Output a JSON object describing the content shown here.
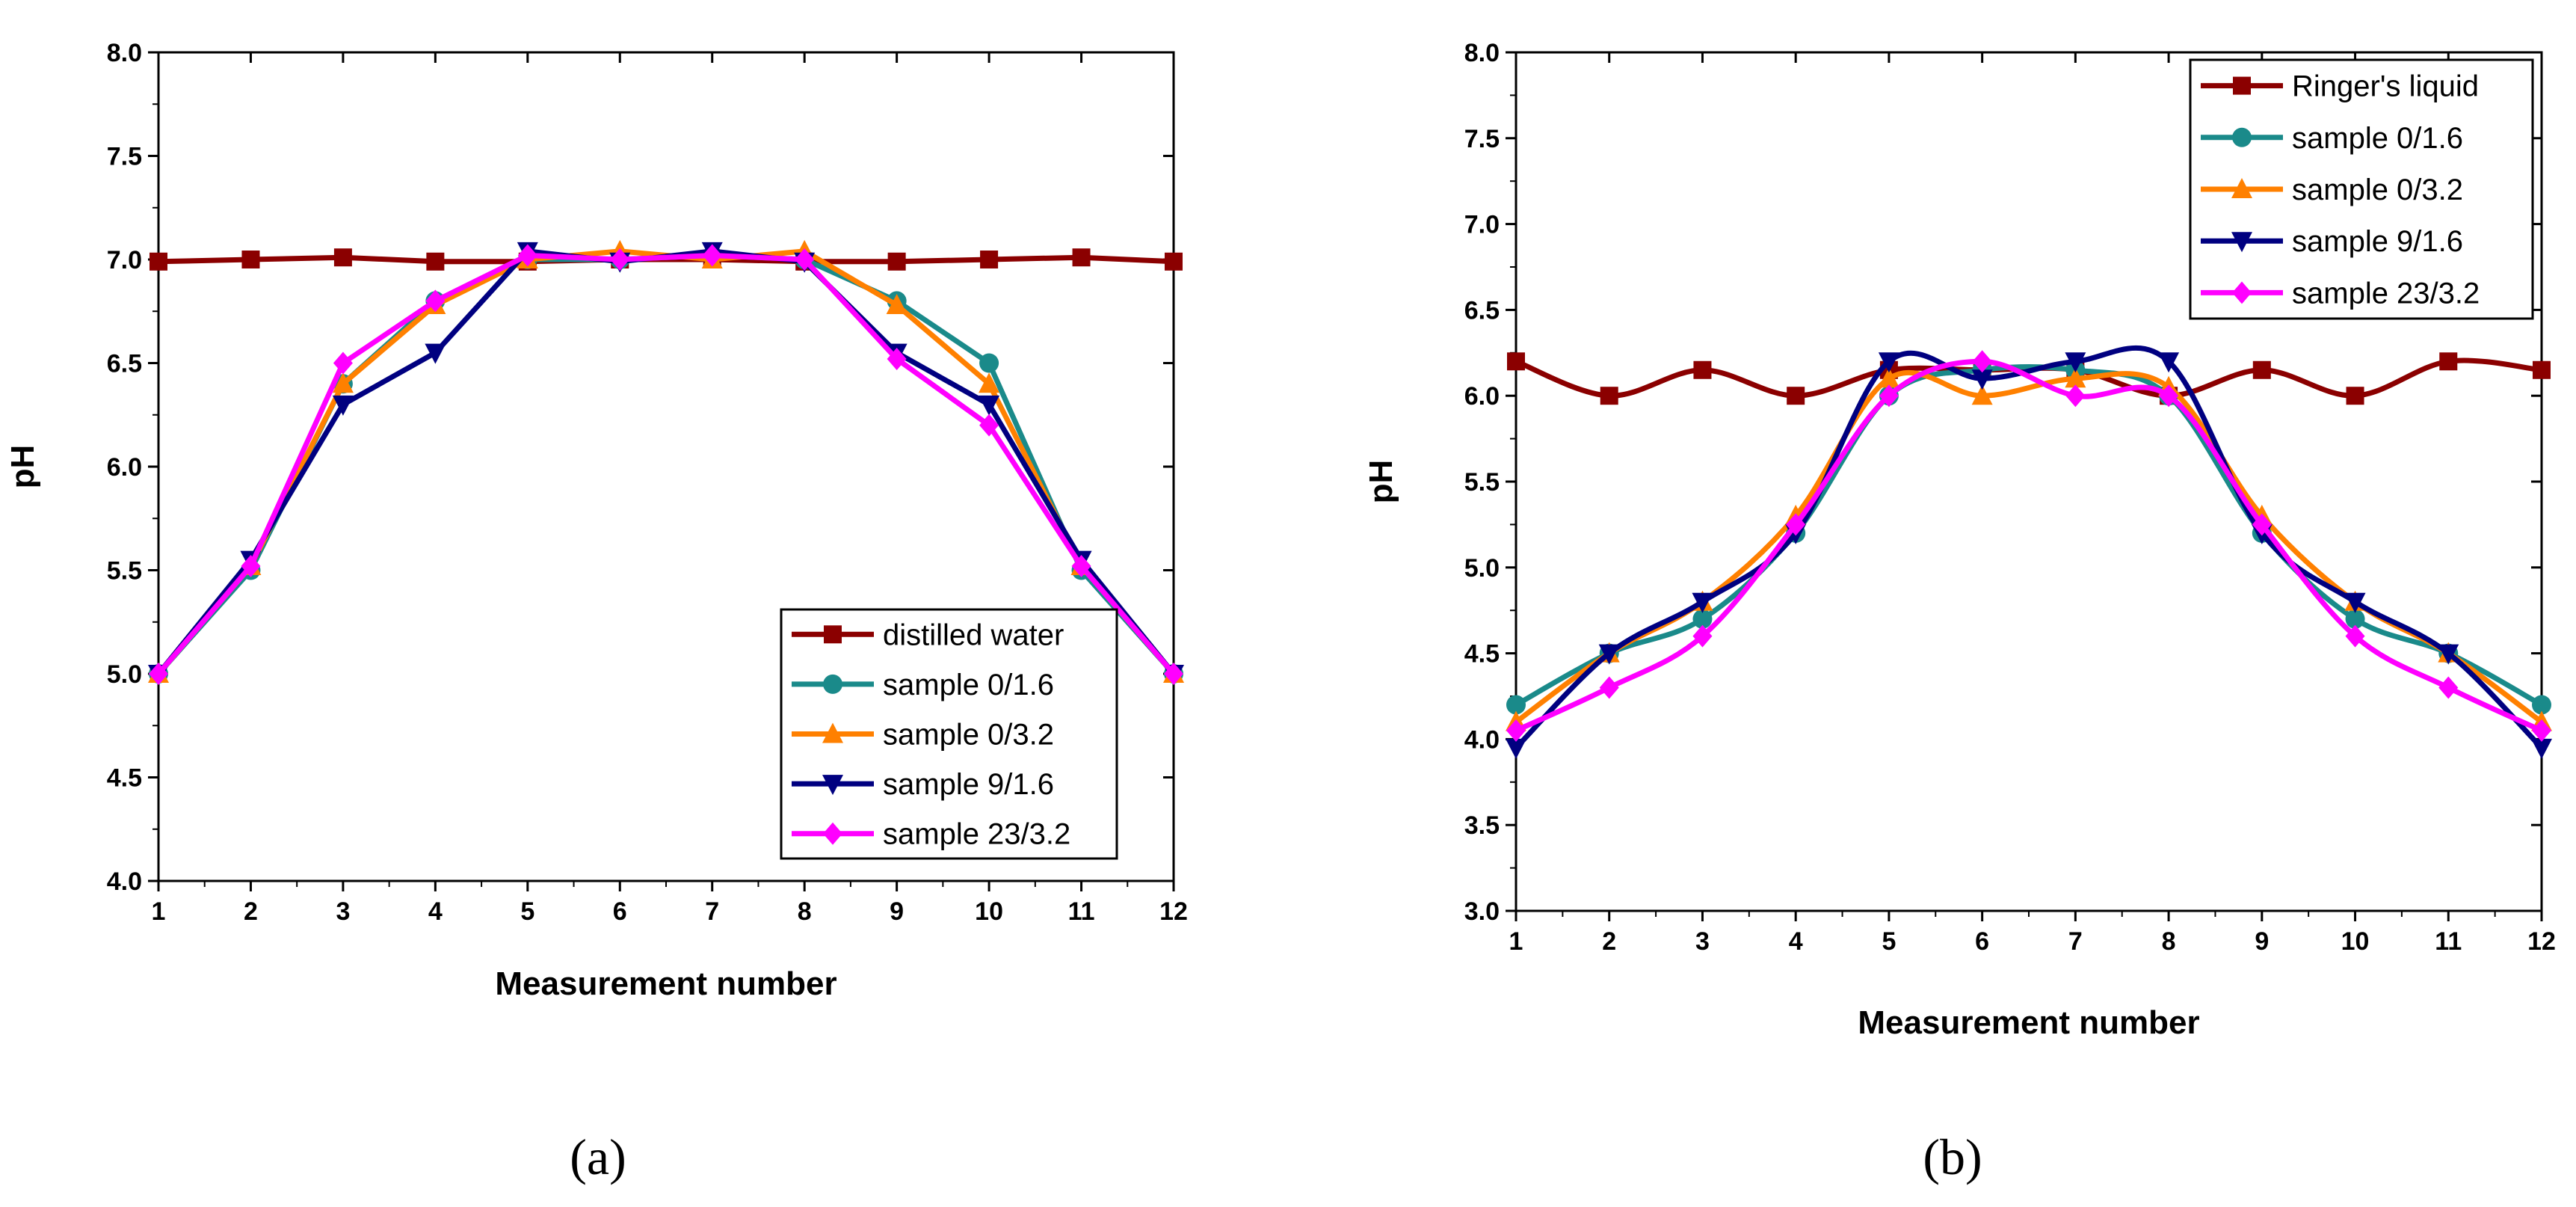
{
  "chart_data": [
    {
      "type": "line",
      "caption": "(a)",
      "xlabel": "Measurement number",
      "ylabel": "pH",
      "x": [
        1,
        2,
        3,
        4,
        5,
        6,
        7,
        8,
        9,
        10,
        11,
        12
      ],
      "xlim": [
        1,
        12
      ],
      "ylim": [
        4.0,
        8.0
      ],
      "yticks": [
        "4.0",
        "4.5",
        "5.0",
        "5.5",
        "6.0",
        "6.5",
        "7.0",
        "7.5",
        "8.0"
      ],
      "xticks": [
        "1",
        "2",
        "3",
        "4",
        "5",
        "6",
        "7",
        "8",
        "9",
        "10",
        "11",
        "12"
      ],
      "legend_position": "bottom-right",
      "series": [
        {
          "name": "distilled water",
          "color": "#8b0000",
          "marker": "square",
          "values": [
            6.99,
            7.0,
            7.01,
            6.99,
            6.99,
            7.0,
            7.0,
            6.99,
            6.99,
            7.0,
            7.01,
            6.99
          ]
        },
        {
          "name": "sample 0/1.6",
          "color": "#1a8a8a",
          "marker": "circle",
          "values": [
            5.0,
            5.5,
            6.4,
            6.8,
            7.0,
            7.0,
            7.02,
            7.0,
            6.8,
            6.5,
            5.5,
            5.0
          ]
        },
        {
          "name": "sample 0/3.2",
          "color": "#ff8000",
          "marker": "triangle-up",
          "values": [
            5.0,
            5.52,
            6.4,
            6.78,
            7.0,
            7.04,
            7.0,
            7.04,
            6.78,
            6.4,
            5.52,
            5.0
          ]
        },
        {
          "name": "sample 9/1.6",
          "color": "#000080",
          "marker": "triangle-down",
          "values": [
            5.0,
            5.55,
            6.3,
            6.55,
            7.04,
            6.99,
            7.04,
            6.99,
            6.55,
            6.3,
            5.55,
            5.0
          ]
        },
        {
          "name": "sample 23/3.2",
          "color": "#ff00ff",
          "marker": "diamond",
          "values": [
            5.0,
            5.52,
            6.5,
            6.8,
            7.02,
            7.0,
            7.02,
            7.0,
            6.52,
            6.2,
            5.52,
            5.0
          ]
        }
      ]
    },
    {
      "type": "line",
      "caption": "(b)",
      "xlabel": "Measurement number",
      "ylabel": "pH",
      "x": [
        1,
        2,
        3,
        4,
        5,
        6,
        7,
        8,
        9,
        10,
        11,
        12
      ],
      "xlim": [
        1,
        12
      ],
      "ylim": [
        3.0,
        8.0
      ],
      "yticks": [
        "3.0",
        "3.5",
        "4.0",
        "4.5",
        "5.0",
        "5.5",
        "6.0",
        "6.5",
        "7.0",
        "7.5",
        "8.0"
      ],
      "xticks": [
        "1",
        "2",
        "3",
        "4",
        "5",
        "6",
        "7",
        "8",
        "9",
        "10",
        "11",
        "12"
      ],
      "legend_position": "top-right",
      "series": [
        {
          "name": "Ringer's liquid",
          "color": "#8b0000",
          "marker": "square",
          "values": [
            6.2,
            6.0,
            6.15,
            6.0,
            6.15,
            6.15,
            6.15,
            6.0,
            6.15,
            6.0,
            6.2,
            6.15
          ]
        },
        {
          "name": "sample 0/1.6",
          "color": "#1a8a8a",
          "marker": "circle",
          "values": [
            4.2,
            4.5,
            4.7,
            5.2,
            6.0,
            6.15,
            6.15,
            6.0,
            5.2,
            4.7,
            4.5,
            4.2
          ]
        },
        {
          "name": "sample 0/3.2",
          "color": "#ff8000",
          "marker": "triangle-up",
          "values": [
            4.1,
            4.5,
            4.8,
            5.3,
            6.1,
            6.0,
            6.1,
            6.05,
            5.3,
            4.8,
            4.5,
            4.1
          ]
        },
        {
          "name": "sample 9/1.6",
          "color": "#000080",
          "marker": "triangle-down",
          "values": [
            3.95,
            4.5,
            4.8,
            5.2,
            6.2,
            6.1,
            6.2,
            6.2,
            5.2,
            4.8,
            4.5,
            3.95
          ]
        },
        {
          "name": "sample 23/3.2",
          "color": "#ff00ff",
          "marker": "diamond",
          "values": [
            4.05,
            4.3,
            4.6,
            5.25,
            6.0,
            6.2,
            6.0,
            6.0,
            5.25,
            4.6,
            4.3,
            4.05
          ]
        }
      ]
    }
  ]
}
